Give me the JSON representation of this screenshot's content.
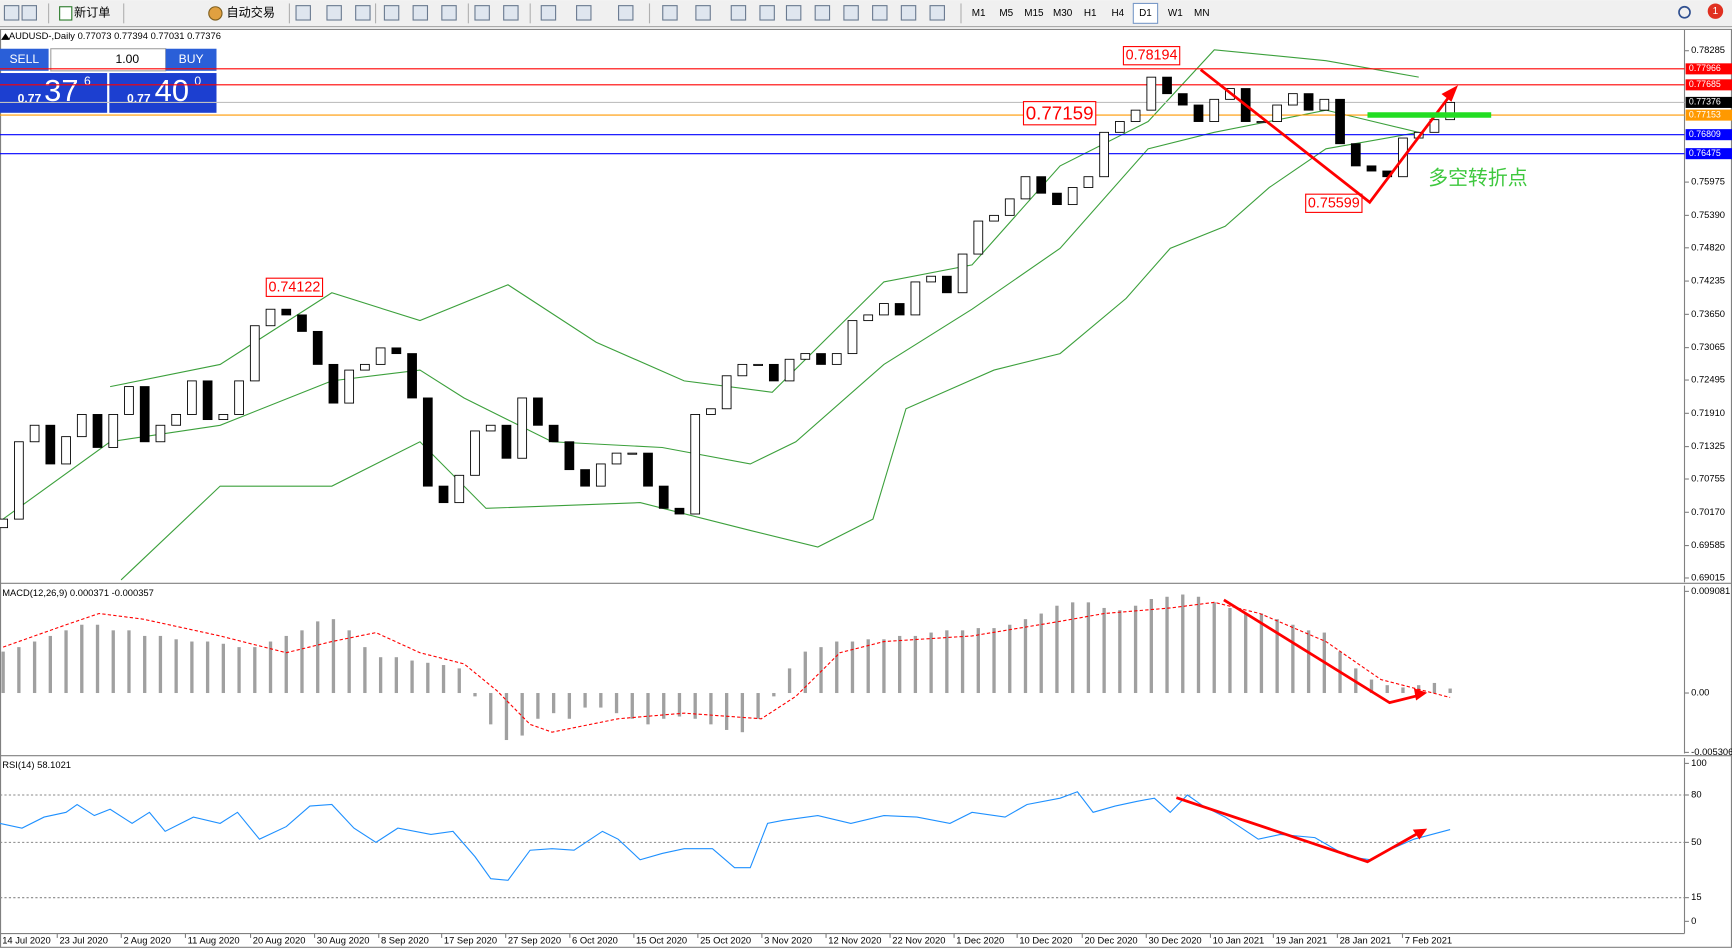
{
  "toolbar": {
    "new_order": "新订单",
    "auto_trading": "自动交易",
    "timeframes": [
      "M1",
      "M5",
      "M15",
      "M30",
      "H1",
      "H4",
      "D1",
      "W1",
      "MN"
    ],
    "active_timeframe": "D1",
    "notifications": "1"
  },
  "trade_panel": {
    "sell": "SELL",
    "buy": "BUY",
    "lots": "1.00",
    "bid": {
      "big": "0.77",
      "pips": "37",
      "point": "6"
    },
    "ask": {
      "big": "0.77",
      "pips": "40",
      "point": "0"
    }
  },
  "chart_data": [
    {
      "type": "candlestick",
      "title": "AUDUSD-,Daily 0.77073 0.77394 0.77031 0.77376",
      "first_open": 0.699,
      "closes": [
        0.7005,
        0.7141,
        0.717,
        0.7102,
        0.715,
        0.7189,
        0.7131,
        0.7189,
        0.7238,
        0.7141,
        0.717,
        0.7189,
        0.7248,
        0.718,
        0.7189,
        0.7248,
        0.7345,
        0.7374,
        0.7364,
        0.7335,
        0.7277,
        0.7209,
        0.7267,
        0.7277,
        0.7306,
        0.7296,
        0.7218,
        0.7063,
        0.7034,
        0.7082,
        0.716,
        0.717,
        0.7112,
        0.7218,
        0.717,
        0.7141,
        0.7092,
        0.7063,
        0.7102,
        0.7121,
        0.7121,
        0.7063,
        0.7024,
        0.7014,
        0.7189,
        0.7199,
        0.7257,
        0.7277,
        0.7277,
        0.7248,
        0.7286,
        0.7296,
        0.7277,
        0.7296,
        0.7354,
        0.7364,
        0.7384,
        0.7364,
        0.7422,
        0.7432,
        0.7403,
        0.7471,
        0.7529,
        0.7539,
        0.7568,
        0.7607,
        0.7578,
        0.7558,
        0.7588,
        0.7607,
        0.7685,
        0.7704,
        0.7724,
        0.7782,
        0.7753,
        0.7733,
        0.7704,
        0.7743,
        0.7762,
        0.7704,
        0.7704,
        0.7733,
        0.7753,
        0.7724,
        0.7743,
        0.7665,
        0.7626,
        0.7617,
        0.7607,
        0.7675,
        0.7685,
        0.77073,
        0.77376
      ],
      "candle_colors": {
        "up": "#ffffff",
        "down": "#000000",
        "outline": "#000000"
      },
      "bands": [
        {
          "color": "#3ca03c",
          "x": [
            7.8,
            14.8,
            21.9,
            27.5,
            33.1,
            38.7,
            44.3,
            49.9,
            57.0,
            62.6,
            68.2,
            73.8,
            78.0,
            85.1,
            91.0
          ],
          "values": [
            0.7238,
            0.7277,
            0.7403,
            0.7354,
            0.7417,
            0.7316,
            0.7248,
            0.7228,
            0.7422,
            0.7452,
            0.7626,
            0.7704,
            0.783,
            0.7811,
            0.7782
          ]
        },
        {
          "color": "#3ca03c",
          "x": [
            1,
            7.8,
            14.8,
            21.9,
            27.5,
            30.3,
            35.9,
            42.9,
            48.5,
            51.4,
            57.0,
            62.6,
            68.2,
            73.8,
            78.0,
            85.1,
            91.0
          ],
          "values": [
            0.7005,
            0.7141,
            0.717,
            0.7248,
            0.7267,
            0.7218,
            0.7141,
            0.7131,
            0.7102,
            0.7141,
            0.7277,
            0.7374,
            0.7481,
            0.7656,
            0.7685,
            0.7724,
            0.7685
          ]
        },
        {
          "color": "#3ca03c",
          "x": [
            8.5,
            14.8,
            21.9,
            27.5,
            31.7,
            41.5,
            48.5,
            52.8,
            56.3,
            58.4,
            64.0,
            68.2,
            72.4,
            75.2,
            78.7,
            81.5,
            85.1,
            91.0
          ],
          "values": [
            0.6898,
            0.7063,
            0.7063,
            0.7141,
            0.7024,
            0.7034,
            0.6985,
            0.6956,
            0.7005,
            0.7199,
            0.7267,
            0.7296,
            0.7393,
            0.7481,
            0.752,
            0.7588,
            0.7656,
            0.7685
          ]
        }
      ],
      "levels": [
        {
          "value": 0.77966,
          "color": "#ff0000"
        },
        {
          "value": 0.77685,
          "color": "#ff0000"
        },
        {
          "value": 0.77153,
          "color": "#ff9900"
        },
        {
          "value": 0.76809,
          "color": "#0000ff"
        },
        {
          "value": 0.76475,
          "color": "#0000ff"
        }
      ],
      "current_price": 0.77376,
      "annotations": [
        0.78194,
        0.74122,
        0.75599,
        0.77159
      ],
      "note": "多空转折点",
      "xlim": [
        0.8,
        107.9
      ],
      "ylim": [
        0.6894,
        0.7865
      ],
      "yticks": [
        0.78285,
        0.75975,
        {
          "value": 0.7539,
          "label": "0.75390"
        },
        {
          "value": 0.7482,
          "label": "0.74820"
        },
        0.74235,
        {
          "value": 0.7365,
          "label": "0.73650"
        },
        0.73065,
        0.72495,
        {
          "value": 0.7191,
          "label": "0.71910"
        },
        0.71325,
        0.70755,
        {
          "value": 0.7017,
          "label": "0.70170"
        },
        0.69585,
        0.69015
      ]
    },
    {
      "type": "macd",
      "title": "MACD(12,26,9) 0.000371 -0.000357",
      "histogram_color": "#a0a0a0",
      "histogram": [
        0.0037,
        0.0041,
        0.0046,
        0.0051,
        0.0056,
        0.0061,
        0.0061,
        0.0056,
        0.0056,
        0.0051,
        0.0051,
        0.0048,
        0.0046,
        0.0046,
        0.0044,
        0.0041,
        0.0041,
        0.0046,
        0.0051,
        0.0056,
        0.0064,
        0.0066,
        0.0056,
        0.0041,
        0.0032,
        0.0032,
        0.0029,
        0.0027,
        0.0025,
        0.0022,
        -0.0003,
        -0.0028,
        -0.0042,
        -0.0038,
        -0.0023,
        -0.0018,
        -0.0023,
        -0.0013,
        -0.0013,
        -0.0018,
        -0.0023,
        -0.0028,
        -0.0023,
        -0.0021,
        -0.0023,
        -0.0028,
        -0.0033,
        -0.0035,
        -0.0023,
        -0.0003,
        0.0022,
        0.0037,
        0.0041,
        0.0046,
        0.0046,
        0.0048,
        0.0048,
        0.0051,
        0.0051,
        0.0054,
        0.0056,
        0.0056,
        0.0058,
        0.0058,
        0.0061,
        0.0066,
        0.0071,
        0.0078,
        0.0081,
        0.0081,
        0.0076,
        0.0074,
        0.0078,
        0.0084,
        0.0086,
        0.0088,
        0.0086,
        0.0081,
        0.0076,
        0.0071,
        0.0071,
        0.0066,
        0.0061,
        0.0056,
        0.0054,
        0.0037,
        0.0022,
        0.0012,
        0.0007,
        0.0005,
        0.0007,
        0.0009,
        0.0004
      ],
      "signal": {
        "color": "#ff0000",
        "x": [
          1,
          5,
          7.1,
          9.9,
          14.8,
          19,
          21.9,
          24.7,
          27.5,
          30.3,
          32.4,
          34.5,
          35.9,
          40.1,
          44.3,
          49.2,
          51.4,
          54.2,
          57,
          62.6,
          68.2,
          71,
          75.2,
          78,
          80.9,
          85.1,
          88.6,
          93
        ],
        "values": [
          0.0041,
          0.0061,
          0.0071,
          0.0066,
          0.0051,
          0.0036,
          0.0046,
          0.0054,
          0.0036,
          0.0026,
          0.0002,
          -0.0028,
          -0.0035,
          -0.0023,
          -0.0018,
          -0.0023,
          -0.0003,
          0.0036,
          0.0046,
          0.0051,
          0.0064,
          0.0071,
          0.0076,
          0.0081,
          0.0071,
          0.0046,
          0.0012,
          -0.0004
        ]
      },
      "xlim": [
        0.8,
        107.9
      ],
      "ylim": [
        -0.0054,
        0.0096
      ],
      "yticks": [
        0.009081,
        {
          "value": 0,
          "label": "0.00"
        },
        -0.005306
      ]
    },
    {
      "type": "rsi",
      "title": "RSI(14) 58.1021",
      "color": "#1e90ff",
      "x": [
        0.8,
        2.2,
        3.6,
        5.0,
        5.7,
        6.8,
        7.8,
        9.2,
        10.3,
        11.3,
        13.1,
        14.8,
        15.9,
        17.3,
        19.0,
        20.5,
        21.9,
        23.3,
        24.7,
        26.1,
        28.2,
        29.6,
        31.0,
        32.0,
        33.1,
        34.5,
        35.9,
        37.3,
        39.1,
        40.1,
        41.5,
        42.9,
        44.3,
        46.1,
        47.5,
        48.5,
        49.6,
        50.6,
        52.8,
        54.9,
        57.0,
        59.1,
        61.2,
        62.6,
        64.7,
        66.1,
        68.2,
        69.3,
        70.3,
        71.7,
        73.1,
        74.2,
        75.2,
        76.3,
        77.3,
        78.7,
        80.8,
        82.2,
        84.4,
        86.5,
        87.9,
        89.3,
        90.7,
        93
      ],
      "values": [
        62,
        59,
        66,
        69,
        74,
        67,
        71,
        62,
        69,
        57,
        66,
        62,
        69,
        52,
        60,
        73,
        74,
        59,
        50,
        59,
        55,
        57,
        41,
        27,
        26,
        45,
        46,
        45,
        57,
        52,
        39,
        43,
        46,
        46,
        34,
        34,
        62,
        64,
        67,
        62,
        67,
        66,
        62,
        69,
        66,
        74,
        78,
        82,
        69,
        73,
        76,
        78,
        69,
        80,
        73,
        66,
        52,
        55,
        53,
        41,
        39,
        46,
        52,
        58.1021
      ],
      "dashed_levels": [
        80,
        50,
        15
      ],
      "xlim": [
        0.8,
        107.9
      ],
      "ylim": [
        -7.7,
        103.5
      ],
      "yticks": [
        100,
        80,
        50,
        15,
        0
      ],
      "xticks": [
        {
          "value": 0.8,
          "label": "14 Jul 2020"
        },
        {
          "value": 4.44,
          "label": "23 Jul 2020"
        },
        {
          "value": 8.51,
          "label": "2 Aug 2020"
        },
        {
          "value": 12.59,
          "label": "11 Aug 2020"
        },
        {
          "value": 16.73,
          "label": "20 Aug 2020"
        },
        {
          "value": 20.8,
          "label": "30 Aug 2020"
        },
        {
          "value": 24.88,
          "label": "8 Sep 2020"
        },
        {
          "value": 28.88,
          "label": "17 Sep 2020"
        },
        {
          "value": 32.95,
          "label": "27 Sep 2020"
        },
        {
          "value": 37.03,
          "label": "6 Oct 2020"
        },
        {
          "value": 41.1,
          "label": "15 Oct 2020"
        },
        {
          "value": 45.17,
          "label": "25 Oct 2020"
        },
        {
          "value": 49.24,
          "label": "3 Nov 2020"
        },
        {
          "value": 53.32,
          "label": "12 Nov 2020"
        },
        {
          "value": 57.39,
          "label": "22 Nov 2020"
        },
        {
          "value": 61.46,
          "label": "1 Dec 2020"
        },
        {
          "value": 65.47,
          "label": "10 Dec 2020"
        },
        {
          "value": 69.61,
          "label": "20 Dec 2020"
        },
        {
          "value": 73.68,
          "label": "30 Dec 2020"
        },
        {
          "value": 77.76,
          "label": "10 Jan 2021"
        },
        {
          "value": 81.76,
          "label": "19 Jan 2021"
        },
        {
          "value": 85.83,
          "label": "28 Jan 2021"
        },
        {
          "value": 89.97,
          "label": "7 Feb 2021"
        }
      ]
    }
  ]
}
